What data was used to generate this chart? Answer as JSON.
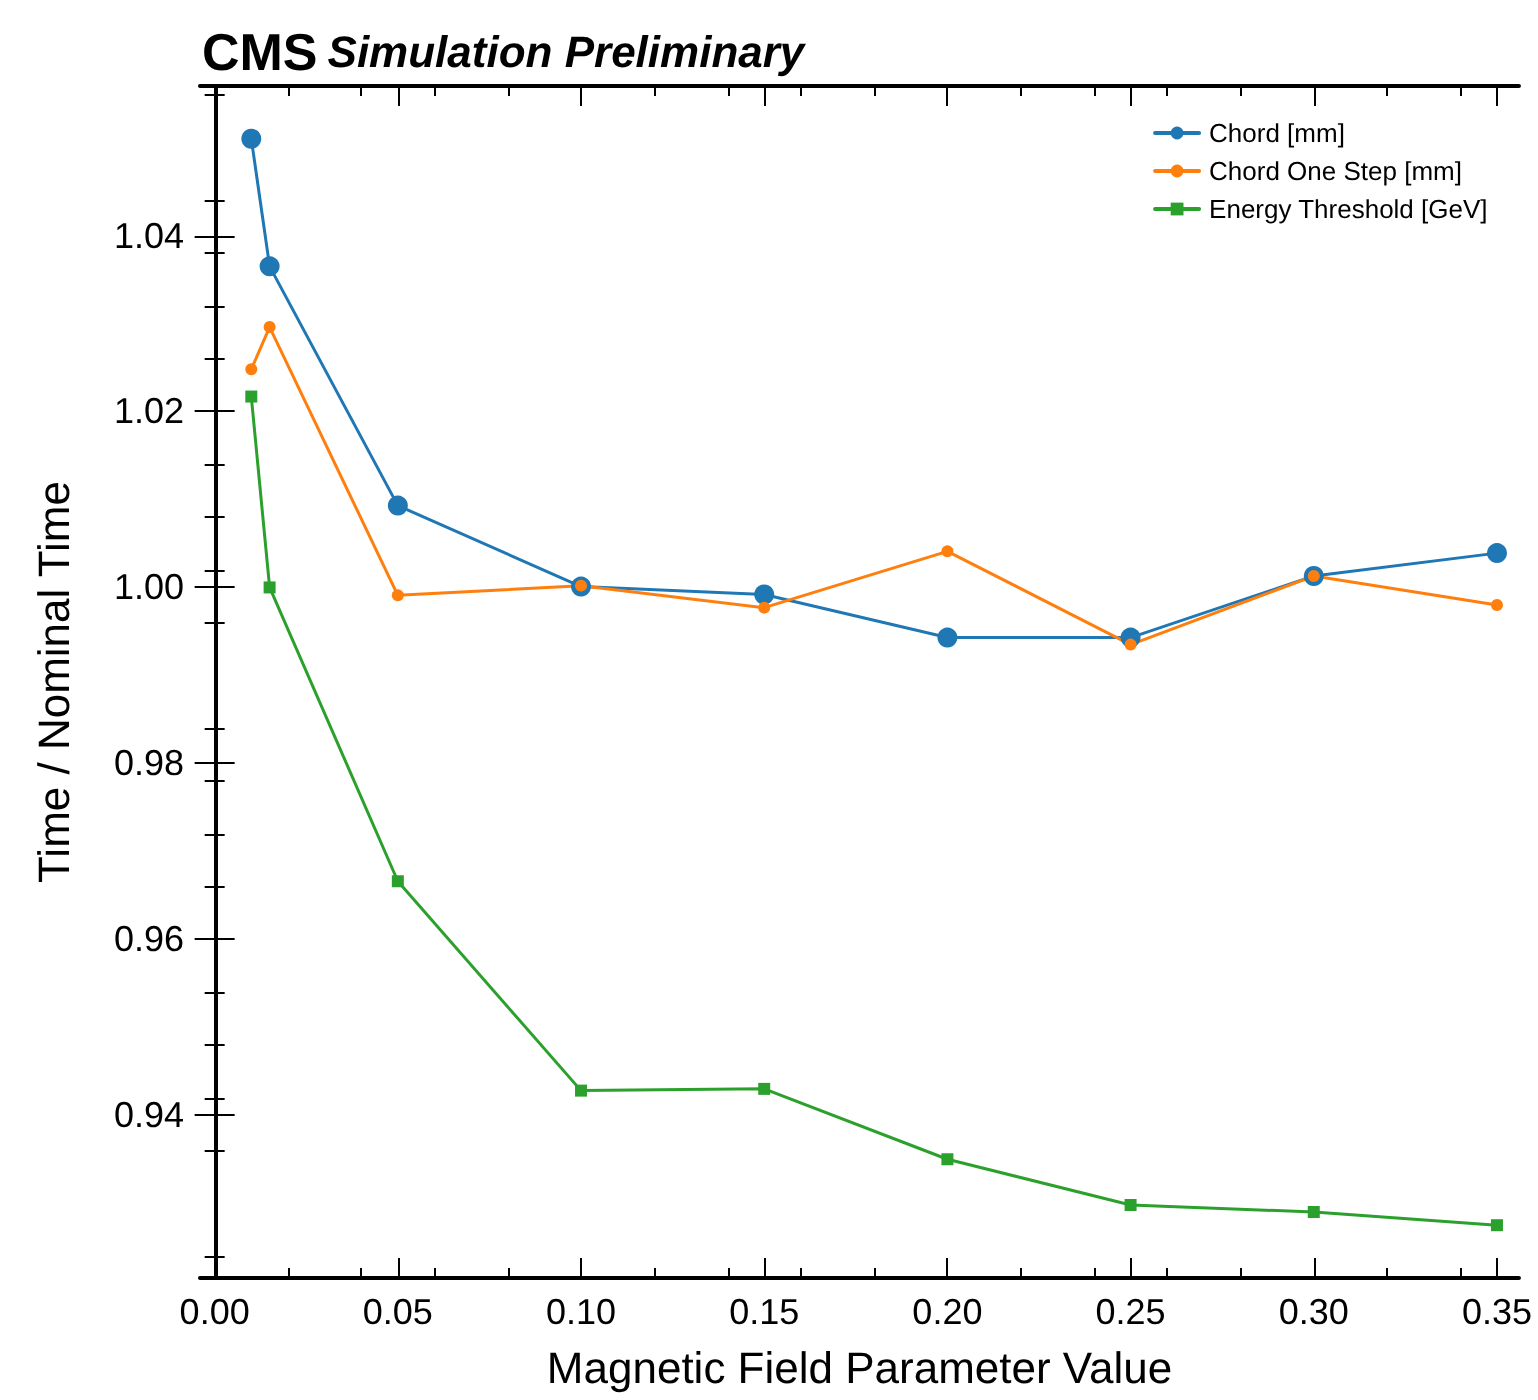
{
  "chart_data": {
    "type": "line",
    "title": "CMS",
    "subtitle": "Simulation Preliminary",
    "xlabel": "Magnetic Field Parameter Value",
    "ylabel": "Time / Nominal Time",
    "x": [
      0.01,
      0.015,
      0.05,
      0.1,
      0.15,
      0.2,
      0.25,
      0.3,
      0.35
    ],
    "series": [
      {
        "name": "Chord [mm]",
        "color": "#1f77b4",
        "marker": "circle",
        "values": [
          1.051,
          1.0365,
          1.0093,
          1.0001,
          0.9992,
          0.9943,
          0.9943,
          1.0013,
          1.0039
        ]
      },
      {
        "name": "Chord One Step [mm]",
        "color": "#ff7f0e",
        "marker": "circle",
        "values": [
          1.0248,
          1.0296,
          0.9991,
          1.0002,
          0.9977,
          1.0041,
          0.9935,
          1.0013,
          0.998
        ]
      },
      {
        "name": "Energy Threshold [GeV]",
        "color": "#2ca02c",
        "marker": "square",
        "values": [
          1.0217,
          1.0,
          0.9666,
          0.9428,
          0.943,
          0.935,
          0.9298,
          0.929,
          0.9275
        ]
      }
    ],
    "xlim": [
      -0.004,
      0.356
    ],
    "xticks": [
      {
        "value": 0,
        "label": "0.00"
      },
      0.05,
      {
        "value": 0.1,
        "label": "0.10"
      },
      0.15,
      {
        "value": 0.2,
        "label": "0.20"
      },
      0.25,
      {
        "value": 0.3,
        "label": "0.30"
      },
      0.35
    ],
    "ylim": [
      0.9215,
      1.057
    ],
    "yticks": [
      0.94,
      0.96,
      0.98,
      {
        "value": 1,
        "label": "1.00"
      },
      1.02,
      1.04
    ],
    "grid": false,
    "legend": "top right",
    "line_style": "solid"
  }
}
